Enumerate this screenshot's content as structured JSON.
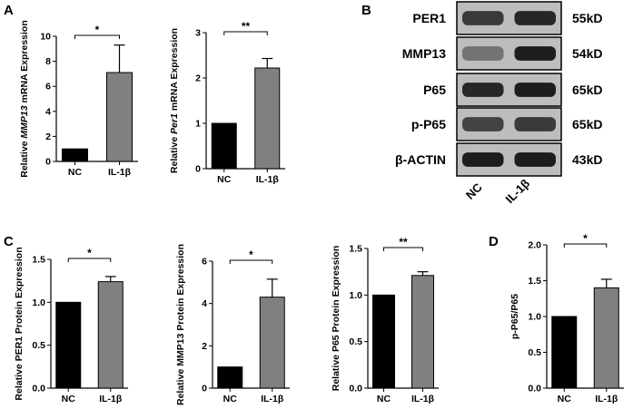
{
  "panel_labels": {
    "a": "A",
    "b": "B",
    "c": "C",
    "d": "D"
  },
  "chart_data": [
    {
      "id": "a1",
      "type": "bar",
      "ylabel_pre": "Relative ",
      "ylabel_gene": "MMP13",
      "ylabel_post": " mRNA Expression",
      "categories": [
        "NC",
        "IL-1β"
      ],
      "values": [
        1.0,
        7.1
      ],
      "errors": [
        0,
        2.2
      ],
      "ylim": [
        0,
        10
      ],
      "yticks": [
        "0",
        "2",
        "4",
        "6",
        "8",
        "10"
      ],
      "significance": "*",
      "colors": [
        "#000000",
        "#808080"
      ]
    },
    {
      "id": "a2",
      "type": "bar",
      "ylabel_pre": "Relative ",
      "ylabel_gene": "Per1",
      "ylabel_post": " mRNA Expression",
      "categories": [
        "NC",
        "IL-1β"
      ],
      "values": [
        1.0,
        2.22
      ],
      "errors": [
        0,
        0.21
      ],
      "ylim": [
        0,
        3
      ],
      "yticks": [
        "0",
        "1",
        "2",
        "3"
      ],
      "significance": "**",
      "colors": [
        "#000000",
        "#808080"
      ]
    },
    {
      "id": "c1",
      "type": "bar",
      "ylabel": "Relative PER1 Protein Expression",
      "categories": [
        "NC",
        "IL-1β"
      ],
      "values": [
        1.0,
        1.24
      ],
      "errors": [
        0,
        0.06
      ],
      "ylim": [
        0,
        1.5
      ],
      "yticks": [
        "0.0",
        "0.5",
        "1.0",
        "1.5"
      ],
      "significance": "*",
      "colors": [
        "#000000",
        "#808080"
      ]
    },
    {
      "id": "c2",
      "type": "bar",
      "ylabel": "Relative MMP13 Protein Expression",
      "categories": [
        "NC",
        "IL-1β"
      ],
      "values": [
        1.0,
        4.3
      ],
      "errors": [
        0,
        0.85
      ],
      "ylim": [
        0,
        6
      ],
      "yticks": [
        "0",
        "2",
        "4",
        "6"
      ],
      "significance": "*",
      "colors": [
        "#000000",
        "#808080"
      ]
    },
    {
      "id": "c3",
      "type": "bar",
      "ylabel": "Relative  P65 Protein Expression",
      "categories": [
        "NC",
        "IL-1β"
      ],
      "values": [
        1.0,
        1.21
      ],
      "errors": [
        0,
        0.04
      ],
      "ylim": [
        0,
        1.5
      ],
      "yticks": [
        "0.0",
        "0.5",
        "1.0",
        "1.5"
      ],
      "significance": "**",
      "colors": [
        "#000000",
        "#808080"
      ]
    },
    {
      "id": "d1",
      "type": "bar",
      "ylabel": "p-P65/P65",
      "categories": [
        "NC",
        "IL-1β"
      ],
      "values": [
        1.0,
        1.4
      ],
      "errors": [
        0,
        0.12
      ],
      "ylim": [
        0,
        2.0
      ],
      "yticks": [
        "0.0",
        "0.5",
        "1.0",
        "1.5",
        "2.0"
      ],
      "significance": "*",
      "colors": [
        "#000000",
        "#808080"
      ]
    }
  ],
  "western_blot": {
    "bands": [
      {
        "protein": "PER1",
        "size": "55kD",
        "intensity": [
          0.75,
          0.85
        ]
      },
      {
        "protein": "MMP13",
        "size": "54kD",
        "intensity": [
          0.45,
          0.9
        ]
      },
      {
        "protein": "P65",
        "size": "65kD",
        "intensity": [
          0.85,
          0.9
        ]
      },
      {
        "protein": "p-P65",
        "size": "65kD",
        "intensity": [
          0.7,
          0.75
        ]
      },
      {
        "protein": "β-ACTIN",
        "size": "43kD",
        "intensity": [
          0.9,
          0.9
        ]
      }
    ],
    "lanes": [
      "NC",
      "IL-1β"
    ]
  }
}
